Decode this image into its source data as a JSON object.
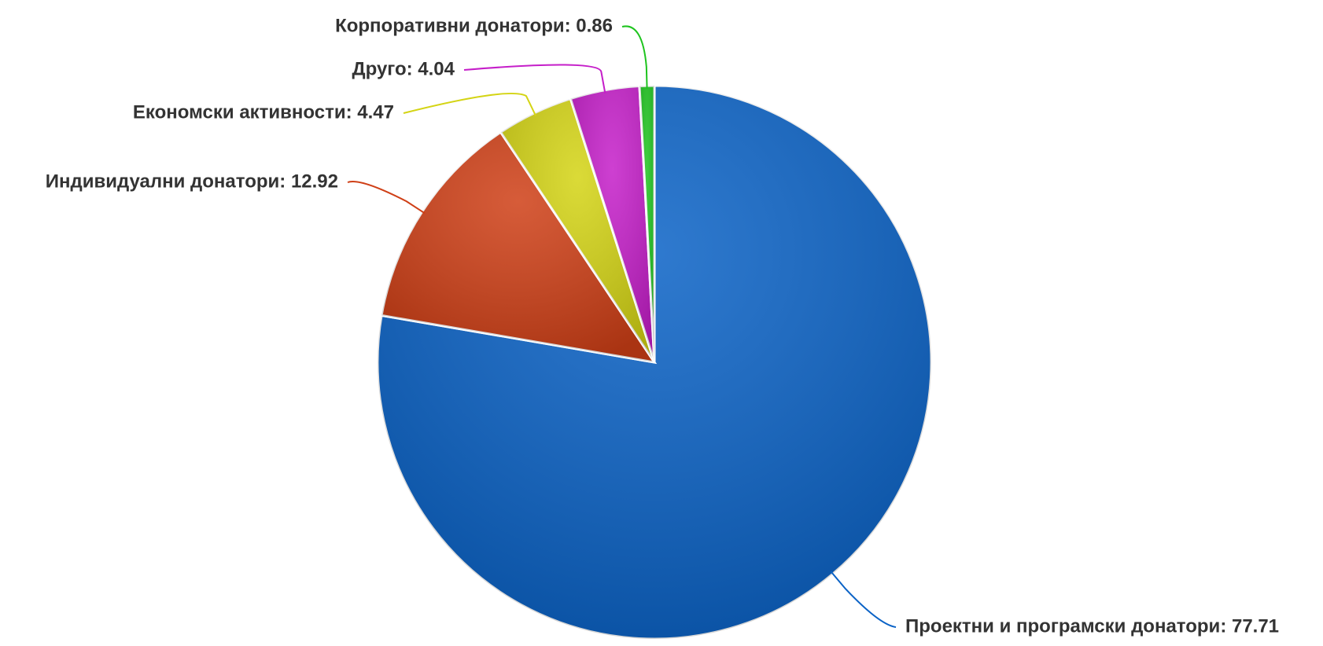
{
  "chart_data": {
    "type": "pie",
    "values": [
      77.71,
      12.92,
      4.47,
      4.04,
      0.86
    ],
    "value_labels": [
      "Проектни и програмски донатори: 77.71",
      "Индивидуални донатори: 12.92",
      "Економски активности: 4.47",
      "Друго: 4.04",
      "Корпоративни донатори: 0.86"
    ],
    "colors": [
      "#0a62c6",
      "#cf3f16",
      "#d4d414",
      "#c51ec9",
      "#1ec41e"
    ]
  }
}
